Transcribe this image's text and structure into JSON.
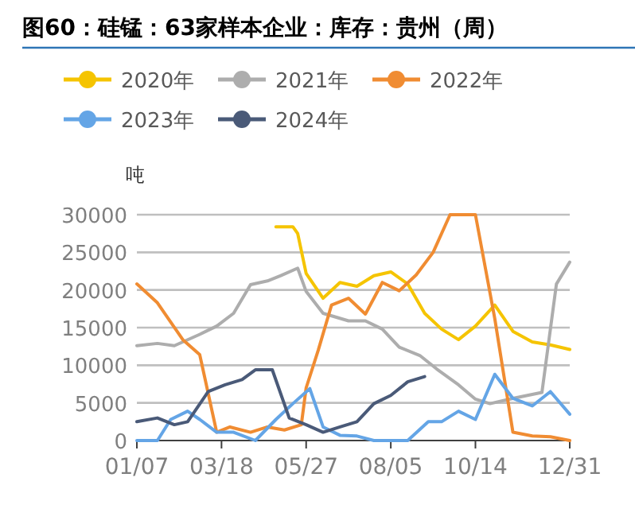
{
  "chart_data": {
    "type": "line",
    "title": "图60：硅锰：63家样本企业：库存：贵州（周）",
    "ylabel": "吨",
    "xlim": [
      "--01-07",
      "--12-31"
    ],
    "xticks": [
      {
        "value": "--01-07",
        "label": "01/07"
      },
      {
        "value": "--03-18",
        "label": "03/18"
      },
      {
        "value": "--05-27",
        "label": "05/27"
      },
      {
        "value": "--08-05",
        "label": "08/05"
      },
      {
        "value": "--10-14",
        "label": "10/14"
      },
      {
        "value": "--12-31",
        "label": "12/31"
      }
    ],
    "ylim": [
      0,
      30000
    ],
    "yticks": [
      0,
      5000,
      10000,
      15000,
      20000,
      25000,
      30000
    ],
    "grid": "y",
    "legend": "top",
    "marker": "none",
    "line_style": "solid",
    "series": [
      {
        "name": "2020年",
        "color": "#f5c400",
        "x": [
          "--05-02",
          "--05-16",
          "--05-20",
          "--05-27",
          "--06-10",
          "--06-24",
          "--07-08",
          "--07-22",
          "--08-05",
          "--08-19",
          "--09-02",
          "--09-16",
          "--09-30",
          "--10-14",
          "--10-30",
          "--11-14",
          "--11-30",
          "--12-15",
          "--12-31"
        ],
        "values": [
          28400,
          28400,
          27500,
          22200,
          18900,
          21000,
          20500,
          21900,
          22400,
          20800,
          16900,
          14800,
          13400,
          15200,
          18000,
          14500,
          13100,
          12700,
          12100
        ]
      },
      {
        "name": "2021年",
        "color": "#adadad",
        "x": [
          "--01-07",
          "--01-24",
          "--02-07",
          "--02-28",
          "--03-14",
          "--03-28",
          "--04-11",
          "--04-25",
          "--05-06",
          "--05-20",
          "--05-27",
          "--06-10",
          "--07-01",
          "--07-15",
          "--07-29",
          "--08-12",
          "--08-29",
          "--09-12",
          "--09-30",
          "--10-14",
          "--10-26",
          "--11-14",
          "--12-08",
          "--12-20",
          "--12-31"
        ],
        "values": [
          12600,
          12900,
          12600,
          14100,
          15200,
          16900,
          20700,
          21200,
          21900,
          22900,
          19800,
          16900,
          15900,
          15900,
          14800,
          12400,
          11300,
          9500,
          7400,
          5500,
          4900,
          5600,
          6400,
          20800,
          23700
        ]
      },
      {
        "name": "2022年",
        "color": "#f08c32",
        "x": [
          "--01-07",
          "--01-24",
          "--02-14",
          "--02-28",
          "--03-14",
          "--03-25",
          "--04-11",
          "--04-25",
          "--05-09",
          "--05-23",
          "--05-27",
          "--06-06",
          "--06-17",
          "--07-01",
          "--07-15",
          "--07-29",
          "--08-12",
          "--08-26",
          "--09-09",
          "--09-23",
          "--10-14",
          "--10-30",
          "--11-14",
          "--11-30",
          "--12-15",
          "--12-31"
        ],
        "values": [
          20800,
          18300,
          13400,
          11400,
          1100,
          1800,
          1100,
          1800,
          1400,
          2100,
          7000,
          12000,
          18000,
          18900,
          16800,
          21000,
          19900,
          22000,
          25000,
          30000,
          30000,
          16200,
          1100,
          600,
          500,
          0
        ]
      },
      {
        "name": "2023年",
        "color": "#64a5e6",
        "x": [
          "--01-07",
          "--01-24",
          "--02-04",
          "--02-18",
          "--02-28",
          "--03-14",
          "--03-28",
          "--04-15",
          "--05-02",
          "--05-16",
          "--05-30",
          "--06-10",
          "--06-24",
          "--07-08",
          "--07-22",
          "--08-19",
          "--09-05",
          "--09-16",
          "--09-30",
          "--10-14",
          "--10-30",
          "--11-14",
          "--11-30",
          "--12-15",
          "--12-31"
        ],
        "values": [
          0,
          0,
          2800,
          3900,
          2800,
          1100,
          1100,
          0,
          2800,
          4900,
          6900,
          1800,
          700,
          600,
          0,
          0,
          2500,
          2500,
          3900,
          2800,
          8800,
          5600,
          4600,
          6500,
          3500
        ]
      },
      {
        "name": "2024年",
        "color": "#4a5a78",
        "x": [
          "--01-07",
          "--01-24",
          "--02-07",
          "--02-18",
          "--03-07",
          "--03-21",
          "--04-04",
          "--04-15",
          "--04-29",
          "--05-13",
          "--05-27",
          "--06-10",
          "--06-24",
          "--07-08",
          "--07-22",
          "--08-05",
          "--08-19",
          "--09-02"
        ],
        "values": [
          2500,
          3000,
          2100,
          2500,
          6500,
          7400,
          8100,
          9400,
          9400,
          3000,
          2100,
          1100,
          1800,
          2500,
          4900,
          6000,
          7800,
          8500
        ]
      }
    ]
  }
}
